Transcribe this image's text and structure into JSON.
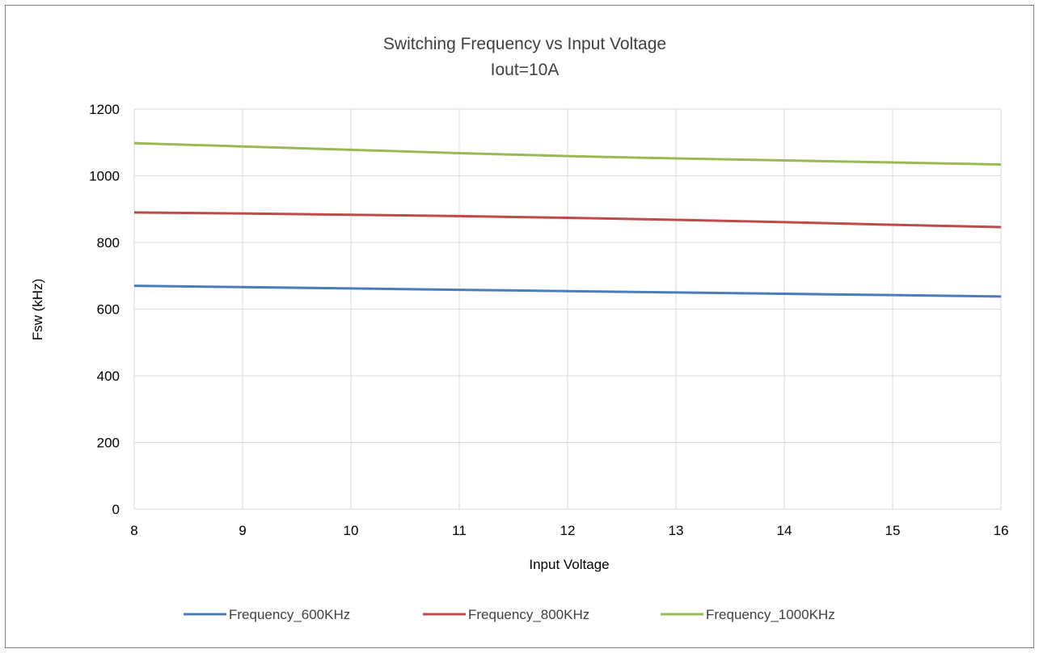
{
  "chart_data": {
    "type": "line",
    "title": "Switching Frequency vs Input Voltage",
    "subtitle": "Iout=10A",
    "xlabel": "Input Voltage",
    "ylabel": "Fsw (kHz)",
    "x": [
      8,
      9,
      10,
      11,
      12,
      13,
      14,
      15,
      16
    ],
    "xlim": [
      8,
      16
    ],
    "ylim": [
      0,
      1200
    ],
    "x_ticks": [
      8,
      9,
      10,
      11,
      12,
      13,
      14,
      15,
      16
    ],
    "y_ticks": [
      0,
      200,
      400,
      600,
      800,
      1000,
      1200
    ],
    "grid": true,
    "legend_position": "bottom",
    "series": [
      {
        "name": "Frequency_600KHz",
        "color": "#4a7ebb",
        "values": [
          670,
          666,
          662,
          658,
          654,
          650,
          646,
          642,
          638
        ]
      },
      {
        "name": "Frequency_800KHz",
        "color": "#be4b48",
        "values": [
          890,
          887,
          883,
          879,
          874,
          868,
          861,
          853,
          846
        ]
      },
      {
        "name": "Frequency_1000KHz",
        "color": "#98b954",
        "values": [
          1098,
          1088,
          1078,
          1068,
          1059,
          1052,
          1046,
          1040,
          1034
        ]
      }
    ]
  }
}
